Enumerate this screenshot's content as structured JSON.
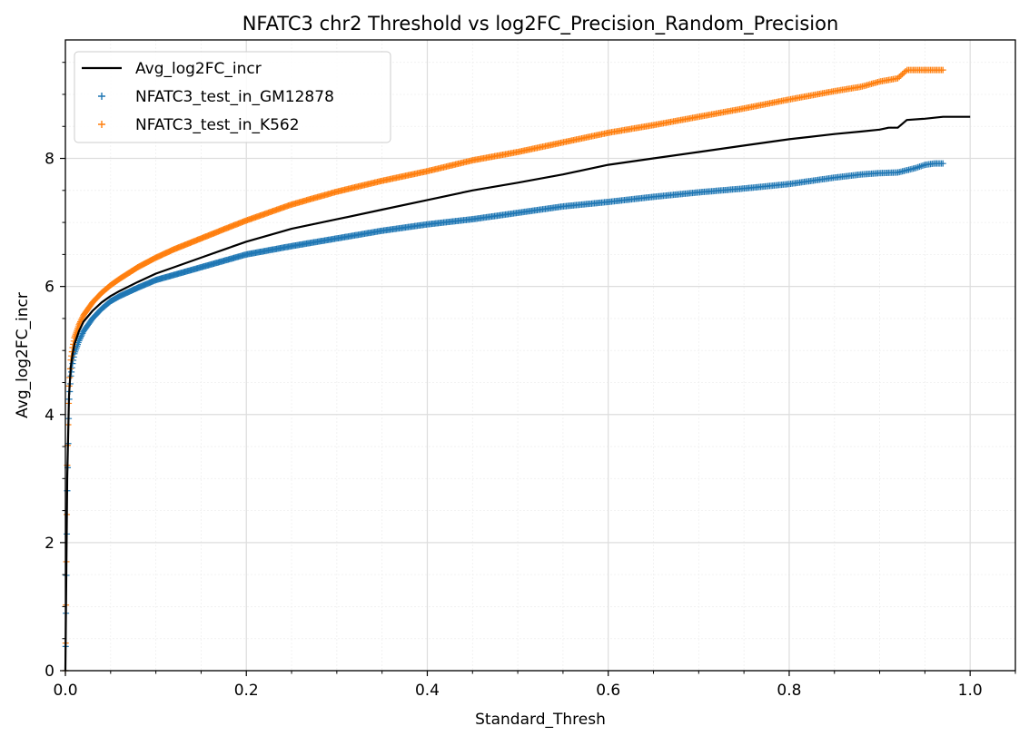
{
  "chart_data": {
    "type": "line",
    "title": "NFATC3 chr2 Threshold vs log2FC_Precision_Random_Precision",
    "xlabel": "Standard_Thresh",
    "ylabel": "Avg_log2FC_incr",
    "xlim": [
      0.0,
      1.05
    ],
    "ylim": [
      0.0,
      9.85
    ],
    "xticks": [
      "0.0",
      "0.2",
      "0.4",
      "0.6",
      "0.8",
      "1.0"
    ],
    "yticks": [
      "0",
      "2",
      "4",
      "6",
      "8"
    ],
    "grid": "major and minor",
    "legend_position": "top-left",
    "series": [
      {
        "name": "Avg_log2FC_incr",
        "style": "line",
        "color": "#000000",
        "x": [
          0.0,
          0.002,
          0.004,
          0.006,
          0.008,
          0.01,
          0.015,
          0.02,
          0.03,
          0.04,
          0.05,
          0.06,
          0.08,
          0.1,
          0.12,
          0.15,
          0.18,
          0.2,
          0.25,
          0.3,
          0.35,
          0.4,
          0.45,
          0.5,
          0.55,
          0.6,
          0.65,
          0.7,
          0.75,
          0.8,
          0.85,
          0.88,
          0.9,
          0.91,
          0.92,
          0.93,
          0.95,
          0.97,
          1.0
        ],
        "y": [
          0.0,
          3.0,
          4.3,
          4.75,
          4.95,
          5.1,
          5.3,
          5.45,
          5.62,
          5.75,
          5.85,
          5.93,
          6.07,
          6.2,
          6.3,
          6.45,
          6.6,
          6.7,
          6.9,
          7.05,
          7.2,
          7.35,
          7.5,
          7.62,
          7.75,
          7.9,
          8.0,
          8.1,
          8.2,
          8.3,
          8.38,
          8.42,
          8.45,
          8.48,
          8.48,
          8.6,
          8.62,
          8.65,
          8.65
        ]
      },
      {
        "name": "NFATC3_test_in_GM12878",
        "style": "markers",
        "marker": "+",
        "color": "#1f77b4",
        "x": [
          0.0,
          0.002,
          0.004,
          0.006,
          0.008,
          0.01,
          0.015,
          0.02,
          0.03,
          0.04,
          0.05,
          0.06,
          0.08,
          0.1,
          0.12,
          0.15,
          0.18,
          0.2,
          0.25,
          0.3,
          0.35,
          0.4,
          0.45,
          0.5,
          0.55,
          0.6,
          0.65,
          0.7,
          0.75,
          0.8,
          0.85,
          0.88,
          0.9,
          0.92,
          0.94,
          0.95,
          0.96,
          0.97
        ],
        "y": [
          0.0,
          2.8,
          4.2,
          4.6,
          4.8,
          4.95,
          5.15,
          5.3,
          5.5,
          5.65,
          5.77,
          5.85,
          5.98,
          6.1,
          6.18,
          6.3,
          6.42,
          6.5,
          6.63,
          6.75,
          6.87,
          6.97,
          7.05,
          7.15,
          7.25,
          7.32,
          7.4,
          7.47,
          7.53,
          7.6,
          7.7,
          7.75,
          7.77,
          7.78,
          7.85,
          7.9,
          7.92,
          7.92
        ]
      },
      {
        "name": "NFATC3_test_in_K562",
        "style": "markers",
        "marker": "+",
        "color": "#ff7f0e",
        "x": [
          0.0,
          0.002,
          0.004,
          0.006,
          0.008,
          0.01,
          0.015,
          0.02,
          0.03,
          0.04,
          0.05,
          0.06,
          0.08,
          0.1,
          0.12,
          0.15,
          0.18,
          0.2,
          0.25,
          0.3,
          0.35,
          0.4,
          0.45,
          0.5,
          0.55,
          0.6,
          0.65,
          0.7,
          0.75,
          0.8,
          0.85,
          0.88,
          0.9,
          0.92,
          0.93,
          0.95,
          0.97
        ],
        "y": [
          0.0,
          3.2,
          4.4,
          4.85,
          5.05,
          5.2,
          5.4,
          5.55,
          5.75,
          5.9,
          6.02,
          6.12,
          6.3,
          6.45,
          6.58,
          6.75,
          6.92,
          7.03,
          7.28,
          7.48,
          7.65,
          7.8,
          7.97,
          8.1,
          8.25,
          8.4,
          8.52,
          8.65,
          8.78,
          8.92,
          9.05,
          9.12,
          9.2,
          9.25,
          9.38,
          9.38,
          9.38
        ]
      }
    ]
  }
}
